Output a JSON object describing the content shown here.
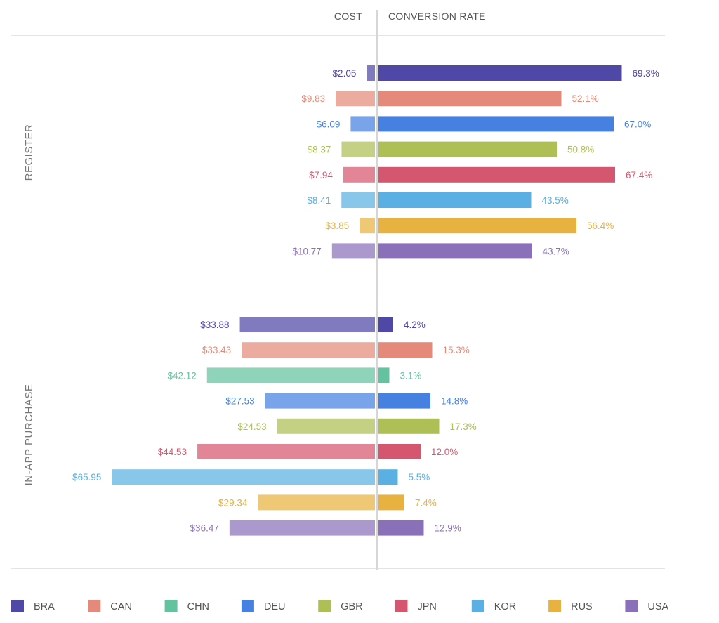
{
  "chart_data": {
    "type": "bar",
    "headers": {
      "cost": "COST",
      "conversion": "CONVERSION RATE"
    },
    "countries": [
      "BRA",
      "CAN",
      "CHN",
      "DEU",
      "GBR",
      "JPN",
      "KOR",
      "RUS",
      "USA"
    ],
    "colors": {
      "BRA": "#4f48a6",
      "CAN": "#e58a7a",
      "CHN": "#63c39f",
      "DEU": "#4680e0",
      "GBR": "#adbf55",
      "JPN": "#d5566f",
      "KOR": "#5ab0e2",
      "RUS": "#e8b240",
      "USA": "#8a70b8"
    },
    "sections": [
      {
        "title": "REGISTER",
        "rows": [
          {
            "country": "BRA",
            "cost": 2.05,
            "cost_label": "$2.05",
            "rate": 69.3,
            "rate_label": "69.3%"
          },
          {
            "country": "CAN",
            "cost": 9.83,
            "cost_label": "$9.83",
            "rate": 52.1,
            "rate_label": "52.1%"
          },
          {
            "country": "DEU",
            "cost": 6.09,
            "cost_label": "$6.09",
            "rate": 67.0,
            "rate_label": "67.0%"
          },
          {
            "country": "GBR",
            "cost": 8.37,
            "cost_label": "$8.37",
            "rate": 50.8,
            "rate_label": "50.8%"
          },
          {
            "country": "JPN",
            "cost": 7.94,
            "cost_label": "$7.94",
            "rate": 67.4,
            "rate_label": "67.4%"
          },
          {
            "country": "KOR",
            "cost": 8.41,
            "cost_label": "$8.41",
            "rate": 43.5,
            "rate_label": "43.5%"
          },
          {
            "country": "RUS",
            "cost": 3.85,
            "cost_label": "$3.85",
            "rate": 56.4,
            "rate_label": "56.4%"
          },
          {
            "country": "USA",
            "cost": 10.77,
            "cost_label": "$10.77",
            "rate": 43.7,
            "rate_label": "43.7%"
          }
        ]
      },
      {
        "title": "IN-APP PURCHASE",
        "rows": [
          {
            "country": "BRA",
            "cost": 33.88,
            "cost_label": "$33.88",
            "rate": 4.2,
            "rate_label": "4.2%"
          },
          {
            "country": "CAN",
            "cost": 33.43,
            "cost_label": "$33.43",
            "rate": 15.3,
            "rate_label": "15.3%"
          },
          {
            "country": "CHN",
            "cost": 42.12,
            "cost_label": "$42.12",
            "rate": 3.1,
            "rate_label": "3.1%"
          },
          {
            "country": "DEU",
            "cost": 27.53,
            "cost_label": "$27.53",
            "rate": 14.8,
            "rate_label": "14.8%"
          },
          {
            "country": "GBR",
            "cost": 24.53,
            "cost_label": "$24.53",
            "rate": 17.3,
            "rate_label": "17.3%"
          },
          {
            "country": "JPN",
            "cost": 44.53,
            "cost_label": "$44.53",
            "rate": 12.0,
            "rate_label": "12.0%"
          },
          {
            "country": "KOR",
            "cost": 65.95,
            "cost_label": "$65.95",
            "rate": 5.5,
            "rate_label": "5.5%"
          },
          {
            "country": "RUS",
            "cost": 29.34,
            "cost_label": "$29.34",
            "rate": 7.4,
            "rate_label": "7.4%"
          },
          {
            "country": "USA",
            "cost": 36.47,
            "cost_label": "$36.47",
            "rate": 12.9,
            "rate_label": "12.9%"
          }
        ]
      }
    ],
    "legend_position": "bottom"
  }
}
